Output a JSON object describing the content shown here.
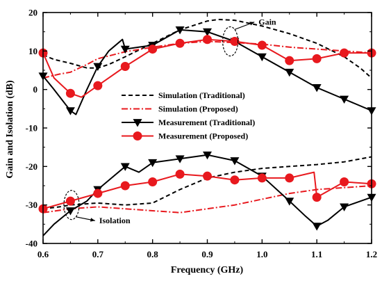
{
  "chart_data": {
    "type": "line",
    "xlabel": "Frequency  (GHz)",
    "ylabel": "Gain and Isolation (dB)",
    "xlim": [
      0.6,
      1.2
    ],
    "ylim": [
      -40,
      20
    ],
    "xticks": [
      "0.6",
      "0.7",
      "0.8",
      "0.9",
      "1.0",
      "1.1",
      "1.2"
    ],
    "yticks": [
      "-40",
      "-30",
      "-20",
      "-10",
      "0",
      "10",
      "20"
    ],
    "legend_position": "center",
    "grid": false,
    "series": [
      {
        "name": "Simulation (Traditional)",
        "style": "dash",
        "color": "#000000",
        "marker": "none",
        "points": [
          [
            0.6,
            9
          ],
          [
            0.62,
            7.8
          ],
          [
            0.65,
            6.8
          ],
          [
            0.68,
            5.6
          ],
          [
            0.7,
            5.6
          ],
          [
            0.72,
            6.5
          ],
          [
            0.75,
            8.5
          ],
          [
            0.8,
            12
          ],
          [
            0.85,
            15.5
          ],
          [
            0.9,
            17.8
          ],
          [
            0.92,
            18.2
          ],
          [
            0.95,
            18
          ],
          [
            1.0,
            16.5
          ],
          [
            1.05,
            14.5
          ],
          [
            1.1,
            12
          ],
          [
            1.15,
            8.5
          ],
          [
            1.18,
            5.5
          ],
          [
            1.2,
            3
          ]
        ]
      },
      {
        "name": "Simulation (Proposed)",
        "style": "dashdot",
        "color": "#e8191e",
        "marker": "none",
        "points": [
          [
            0.6,
            3
          ],
          [
            0.63,
            4
          ],
          [
            0.65,
            4.5
          ],
          [
            0.68,
            6.5
          ],
          [
            0.7,
            8
          ],
          [
            0.75,
            9.8
          ],
          [
            0.8,
            11
          ],
          [
            0.85,
            12
          ],
          [
            0.9,
            12.5
          ],
          [
            0.95,
            12.2
          ],
          [
            1.0,
            11.8
          ],
          [
            1.05,
            11
          ],
          [
            1.1,
            10.5
          ],
          [
            1.15,
            10
          ],
          [
            1.2,
            9.5
          ]
        ]
      },
      {
        "name": "Measurement (Traditional)",
        "style": "solid",
        "color": "#000000",
        "marker": "triangle-down",
        "points": [
          [
            0.6,
            3.5
          ],
          [
            0.62,
            0
          ],
          [
            0.65,
            -5.5
          ],
          [
            0.66,
            -6.5
          ],
          [
            0.68,
            0
          ],
          [
            0.7,
            6
          ],
          [
            0.72,
            10
          ],
          [
            0.745,
            13
          ],
          [
            0.75,
            10.5
          ],
          [
            0.775,
            11
          ],
          [
            0.8,
            11.5
          ],
          [
            0.85,
            15.5
          ],
          [
            0.9,
            15
          ],
          [
            0.95,
            12.5
          ],
          [
            1.0,
            8.5
          ],
          [
            1.05,
            4.5
          ],
          [
            1.1,
            0.5
          ],
          [
            1.15,
            -2.5
          ],
          [
            1.2,
            -5.5
          ]
        ],
        "markers": [
          [
            0.6,
            3.5
          ],
          [
            0.65,
            -5.5
          ],
          [
            0.7,
            6
          ],
          [
            0.75,
            10.5
          ],
          [
            0.8,
            11.5
          ],
          [
            0.85,
            15.5
          ],
          [
            0.9,
            15
          ],
          [
            0.95,
            12.5
          ],
          [
            1.0,
            8.5
          ],
          [
            1.05,
            4.5
          ],
          [
            1.1,
            0.5
          ],
          [
            1.15,
            -2.5
          ],
          [
            1.2,
            -5.5
          ]
        ]
      },
      {
        "name": "Measurement (Proposed)",
        "style": "solid",
        "color": "#e8191e",
        "marker": "circle",
        "points": [
          [
            0.6,
            9.5
          ],
          [
            0.62,
            3
          ],
          [
            0.65,
            -1
          ],
          [
            0.67,
            -2
          ],
          [
            0.7,
            1
          ],
          [
            0.75,
            6
          ],
          [
            0.8,
            10.5
          ],
          [
            0.85,
            12
          ],
          [
            0.9,
            13
          ],
          [
            0.95,
            12.5
          ],
          [
            1.0,
            11.5
          ],
          [
            1.05,
            7.5
          ],
          [
            1.1,
            8
          ],
          [
            1.15,
            9.5
          ],
          [
            1.2,
            9.5
          ]
        ],
        "markers": [
          [
            0.6,
            9.5
          ],
          [
            0.65,
            -1
          ],
          [
            0.7,
            1
          ],
          [
            0.75,
            6
          ],
          [
            0.8,
            10.5
          ],
          [
            0.85,
            12
          ],
          [
            0.9,
            13
          ],
          [
            0.95,
            12.5
          ],
          [
            1.0,
            11.5
          ],
          [
            1.05,
            7.5
          ],
          [
            1.1,
            8
          ],
          [
            1.15,
            9.5
          ],
          [
            1.2,
            9.5
          ]
        ]
      },
      {
        "name": "Simulation (Traditional)",
        "style": "dash",
        "color": "#000000",
        "marker": "none",
        "points": [
          [
            0.6,
            -31
          ],
          [
            0.63,
            -30.5
          ],
          [
            0.65,
            -30
          ],
          [
            0.7,
            -29.5
          ],
          [
            0.75,
            -30
          ],
          [
            0.8,
            -29.5
          ],
          [
            0.85,
            -26
          ],
          [
            0.9,
            -23
          ],
          [
            0.95,
            -21.5
          ],
          [
            1.0,
            -20.5
          ],
          [
            1.05,
            -20
          ],
          [
            1.1,
            -19.5
          ],
          [
            1.15,
            -18.8
          ],
          [
            1.2,
            -17.5
          ]
        ]
      },
      {
        "name": "Simulation (Proposed)",
        "style": "dashdot",
        "color": "#e8191e",
        "marker": "none",
        "points": [
          [
            0.6,
            -32
          ],
          [
            0.65,
            -31
          ],
          [
            0.7,
            -30.5
          ],
          [
            0.75,
            -31
          ],
          [
            0.8,
            -31.5
          ],
          [
            0.85,
            -32
          ],
          [
            0.9,
            -31
          ],
          [
            0.95,
            -30
          ],
          [
            1.0,
            -28.5
          ],
          [
            1.05,
            -27
          ],
          [
            1.1,
            -26
          ],
          [
            1.15,
            -25.5
          ],
          [
            1.2,
            -25
          ]
        ]
      },
      {
        "name": "Measurement (Traditional)",
        "style": "solid",
        "color": "#000000",
        "marker": "triangle-down",
        "points": [
          [
            0.6,
            -38
          ],
          [
            0.62,
            -35
          ],
          [
            0.65,
            -31.5
          ],
          [
            0.68,
            -29
          ],
          [
            0.7,
            -26
          ],
          [
            0.75,
            -20
          ],
          [
            0.775,
            -21.5
          ],
          [
            0.8,
            -19
          ],
          [
            0.85,
            -18
          ],
          [
            0.9,
            -17
          ],
          [
            0.95,
            -18.5
          ],
          [
            1.0,
            -22.5
          ],
          [
            1.05,
            -29
          ],
          [
            1.08,
            -33
          ],
          [
            1.1,
            -35.5
          ],
          [
            1.12,
            -34
          ],
          [
            1.15,
            -30.5
          ],
          [
            1.2,
            -28
          ]
        ],
        "markers": [
          [
            0.65,
            -31.5
          ],
          [
            0.7,
            -26
          ],
          [
            0.75,
            -20
          ],
          [
            0.8,
            -19
          ],
          [
            0.85,
            -18
          ],
          [
            0.9,
            -17
          ],
          [
            0.95,
            -18.5
          ],
          [
            1.0,
            -22.5
          ],
          [
            1.05,
            -29
          ],
          [
            1.1,
            -35.5
          ],
          [
            1.15,
            -30.5
          ],
          [
            1.2,
            -28
          ]
        ]
      },
      {
        "name": "Measurement (Proposed)",
        "style": "solid",
        "color": "#e8191e",
        "marker": "circle",
        "points": [
          [
            0.6,
            -31
          ],
          [
            0.65,
            -29
          ],
          [
            0.7,
            -27
          ],
          [
            0.75,
            -25
          ],
          [
            0.8,
            -24
          ],
          [
            0.85,
            -22
          ],
          [
            0.9,
            -22.5
          ],
          [
            0.95,
            -23.5
          ],
          [
            1.0,
            -23
          ],
          [
            1.05,
            -23
          ],
          [
            1.095,
            -21.5
          ],
          [
            1.1,
            -28
          ],
          [
            1.15,
            -24
          ],
          [
            1.2,
            -24.5
          ]
        ],
        "markers": [
          [
            0.6,
            -31
          ],
          [
            0.65,
            -29
          ],
          [
            0.7,
            -27
          ],
          [
            0.75,
            -25
          ],
          [
            0.8,
            -24
          ],
          [
            0.85,
            -22
          ],
          [
            0.9,
            -22.5
          ],
          [
            0.95,
            -23.5
          ],
          [
            1.0,
            -23
          ],
          [
            1.05,
            -23
          ],
          [
            1.1,
            -28
          ],
          [
            1.15,
            -24
          ],
          [
            1.2,
            -24.5
          ]
        ]
      }
    ],
    "annotations": [
      {
        "text": "Gain",
        "ellipse_center": [
          0.942,
          12.5
        ],
        "text_at": [
          0.991,
          16.8
        ]
      },
      {
        "text": "Isolation",
        "ellipse_center": [
          0.652,
          -30
        ],
        "text_at": [
          0.7,
          -34.8
        ]
      }
    ]
  },
  "legend": {
    "entries": [
      {
        "label": "Simulation (Traditional)",
        "style": "dash",
        "color": "#000000",
        "marker": "none"
      },
      {
        "label": "Simulation (Proposed)",
        "style": "dashdot",
        "color": "#e8191e",
        "marker": "none"
      },
      {
        "label": "Measurement (Traditional)",
        "style": "solid",
        "color": "#000000",
        "marker": "triangle-down"
      },
      {
        "label": "Measurement (Proposed)",
        "style": "solid",
        "color": "#e8191e",
        "marker": "circle"
      }
    ]
  }
}
